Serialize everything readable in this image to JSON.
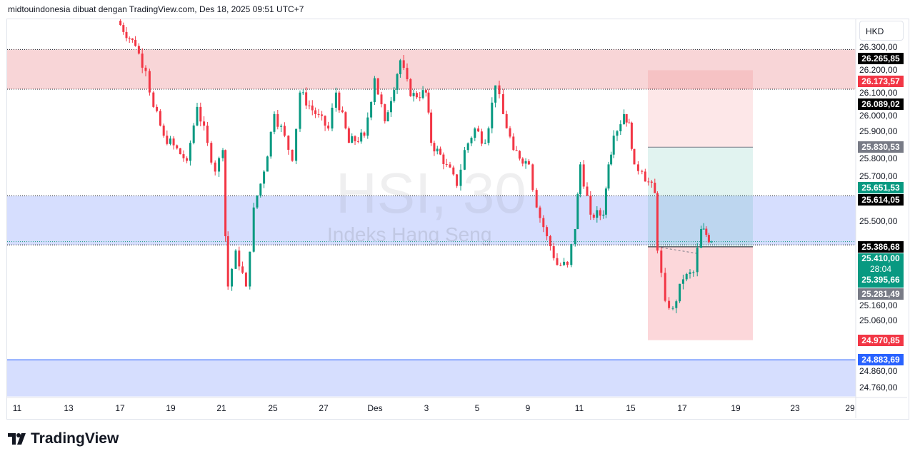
{
  "header": {
    "attribution": "midtouindonesia dibuat dengan TradingView.com, Des 18, 2025 09:51 UTC+7"
  },
  "watermark": {
    "symbol": "HSI, 30",
    "name": "Indeks Hang Seng"
  },
  "currency": "HKD",
  "logo": {
    "text": "TradingView",
    "icon": "tradingview-logo-icon"
  },
  "colors": {
    "up": "#089981",
    "down": "#f23645",
    "zone_red": "#f8d5d7",
    "zone_blue": "#d6defe",
    "tag_black": "#000000",
    "tag_gray": "#787b86",
    "tag_green": "#089981",
    "tag_red": "#f23645",
    "tag_blue": "#2962ff"
  },
  "chart_data": {
    "type": "candlestick",
    "title": "HSI, 30",
    "x_unit": "trading days from Nov 11",
    "x_tick_labels": [
      "11",
      "13",
      "17",
      "19",
      "21",
      "25",
      "27",
      "Des",
      "3",
      "5",
      "9",
      "11",
      "15",
      "17",
      "19",
      "23",
      "29"
    ],
    "y_tick_labels": [
      "26.300,00",
      "26.200,00",
      "26.100,00",
      "26.000,00",
      "25.900,00",
      "25.800,00",
      "25.700,00",
      "25.500,00",
      "25.160,00",
      "25.060,00",
      "24.860,00",
      "24.760,00"
    ],
    "ylim": [
      24720,
      26420
    ],
    "price_path": [
      [
        3.9,
        26394
      ],
      [
        4.6,
        26282
      ],
      [
        5.0,
        26170
      ],
      [
        5.3,
        26010
      ],
      [
        5.7,
        25882
      ],
      [
        6.6,
        25770
      ],
      [
        7.0,
        26010
      ],
      [
        7.4,
        25850
      ],
      [
        7.7,
        25722
      ],
      [
        8.0,
        25818
      ],
      [
        8.1,
        25434
      ],
      [
        8.2,
        25210
      ],
      [
        8.5,
        25370
      ],
      [
        8.9,
        25210
      ],
      [
        9.2,
        25562
      ],
      [
        9.6,
        25722
      ],
      [
        10.0,
        25978
      ],
      [
        10.4,
        25882
      ],
      [
        10.7,
        25770
      ],
      [
        11.0,
        26074
      ],
      [
        11.6,
        25978
      ],
      [
        12.1,
        25914
      ],
      [
        12.4,
        26074
      ],
      [
        12.9,
        25850
      ],
      [
        13.5,
        25882
      ],
      [
        13.9,
        26138
      ],
      [
        14.3,
        25946
      ],
      [
        14.9,
        26218
      ],
      [
        15.3,
        26058
      ],
      [
        15.9,
        26074
      ],
      [
        16.1,
        25850
      ],
      [
        16.7,
        25754
      ],
      [
        17.1,
        25658
      ],
      [
        17.4,
        25818
      ],
      [
        17.8,
        25914
      ],
      [
        18.2,
        25850
      ],
      [
        18.6,
        26106
      ],
      [
        18.9,
        25978
      ],
      [
        19.3,
        25818
      ],
      [
        19.9,
        25754
      ],
      [
        20.2,
        25562
      ],
      [
        20.6,
        25434
      ],
      [
        21.0,
        25306
      ],
      [
        21.4,
        25306
      ],
      [
        21.7,
        25466
      ],
      [
        21.9,
        25754
      ],
      [
        22.3,
        25530
      ],
      [
        22.8,
        25530
      ],
      [
        23.0,
        25754
      ],
      [
        23.2,
        25882
      ],
      [
        23.6,
        25978
      ],
      [
        23.8,
        25940
      ],
      [
        24.0,
        25754
      ],
      [
        24.3,
        25722
      ],
      [
        24.8,
        25626
      ],
      [
        24.9,
        25370
      ],
      [
        25.2,
        25146
      ],
      [
        25.5,
        25114
      ],
      [
        25.9,
        25242
      ],
      [
        26.3,
        25274
      ],
      [
        26.6,
        25466
      ],
      [
        26.8,
        25440
      ],
      [
        27.0,
        25410
      ]
    ],
    "zones": [
      {
        "type": "resistance",
        "from": 26089.02,
        "to": 26265.85,
        "color": "#f8d5d7"
      },
      {
        "type": "support",
        "from": 25395.66,
        "to": 25614.05,
        "color": "#d6defe"
      },
      {
        "type": "support",
        "from": 24720,
        "to": 24883.69,
        "color": "#d6defe"
      }
    ],
    "position": {
      "entry": 25386.68,
      "target": 25830.53,
      "stop": 24970.85,
      "upper": 26173.57
    },
    "price_tags": [
      {
        "value": "26.265,85",
        "kind": "black",
        "price": 26265.85
      },
      {
        "value": "26.173,57",
        "kind": "red",
        "price": 26173.57
      },
      {
        "value": "26.089,02",
        "kind": "black",
        "price": 26089.02
      },
      {
        "value": "25.830,53",
        "kind": "gray",
        "price": 25830.53
      },
      {
        "value": "25.651,53",
        "kind": "green",
        "price": 25651.53
      },
      {
        "value": "25.614,05",
        "kind": "black",
        "price": 25614.05
      },
      {
        "value": "25.386,68",
        "kind": "black",
        "price": 25386.68
      },
      {
        "value": "25.281,49",
        "kind": "gray",
        "price": 25281.49
      },
      {
        "value": "24.970,85",
        "kind": "red",
        "price": 24970.85
      },
      {
        "value": "24.883,69",
        "kind": "blue",
        "price": 24883.69
      }
    ],
    "last_price": {
      "value": "25.410,00",
      "countdown": "28:04",
      "value2": "25.395,66"
    }
  }
}
